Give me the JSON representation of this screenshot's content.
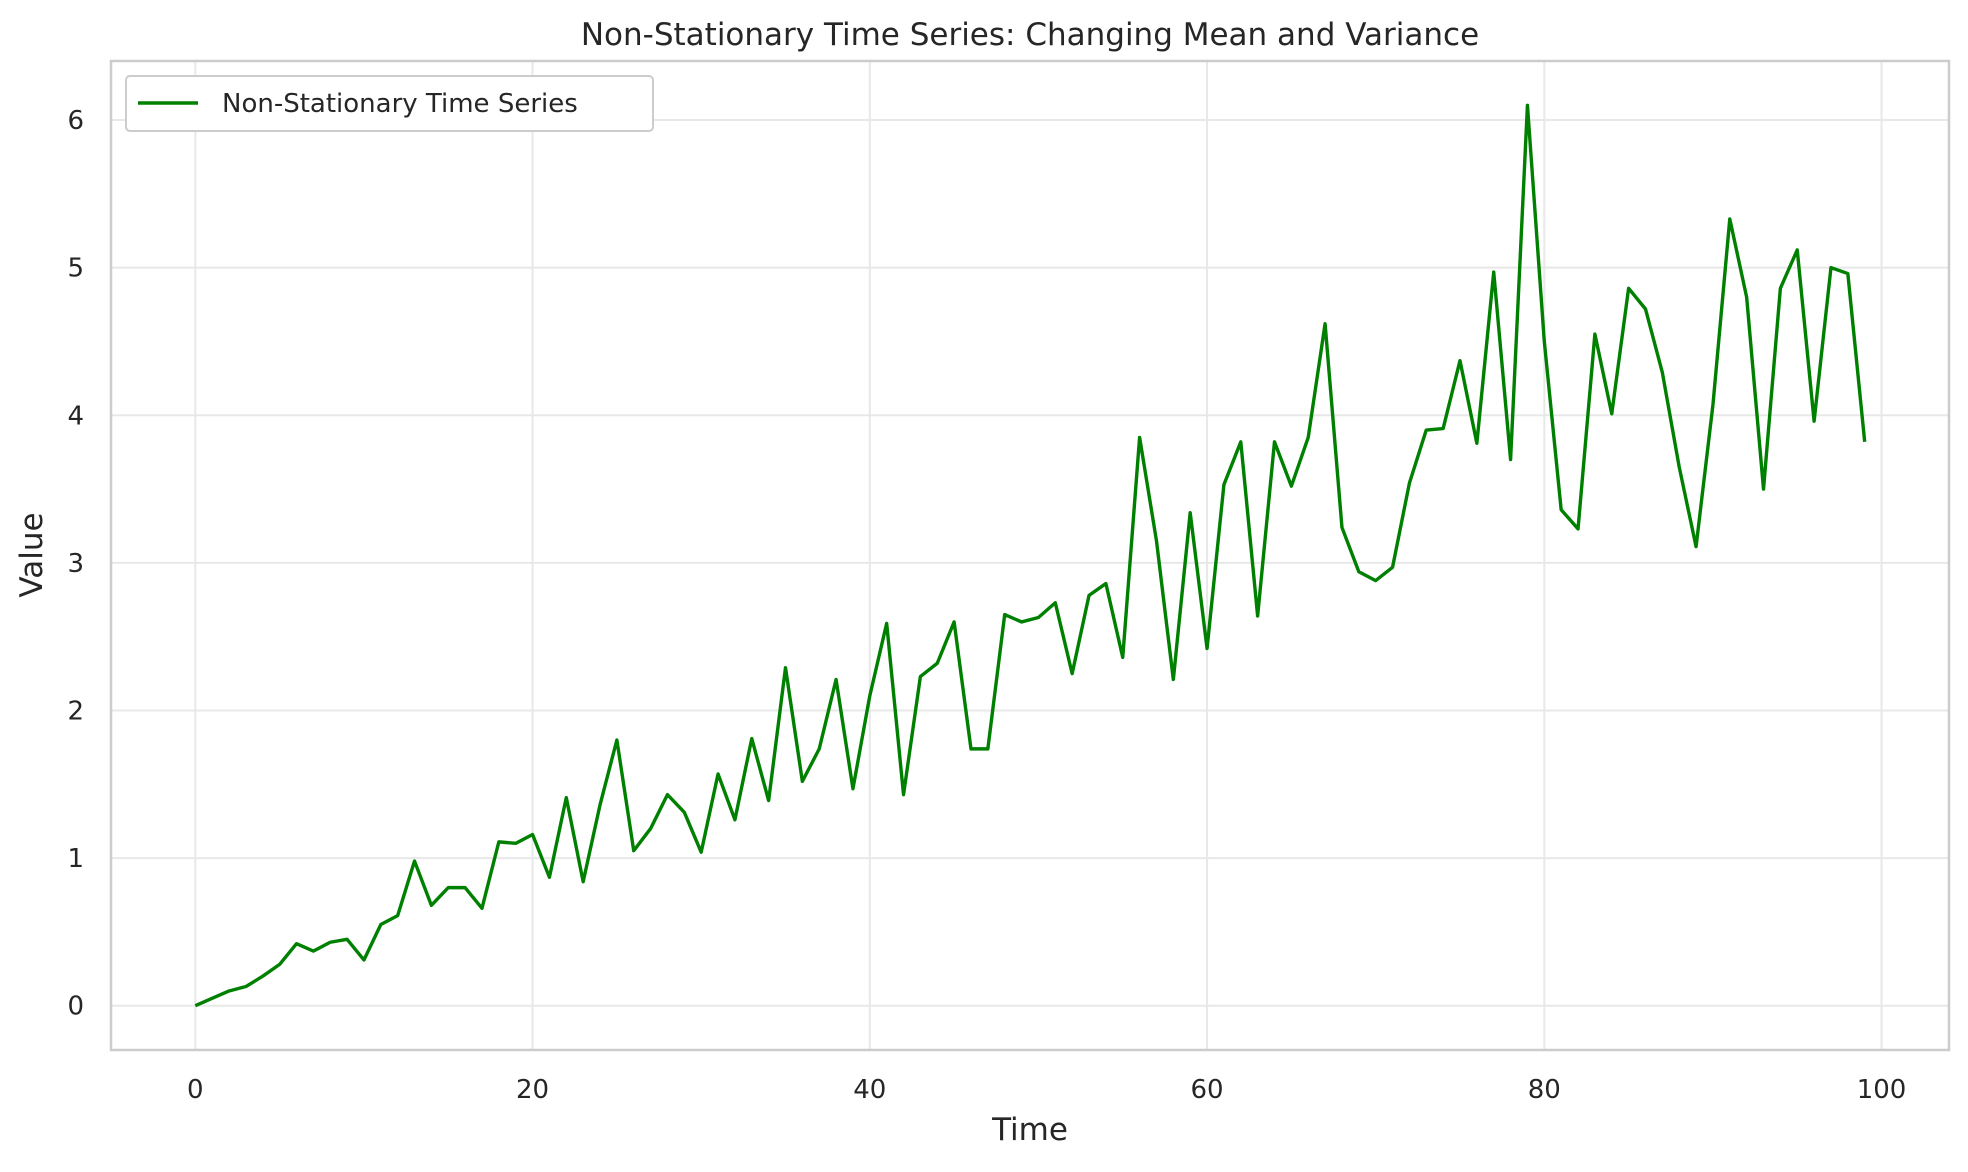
{
  "chart_data": {
    "type": "line",
    "title": "Non-Stationary Time Series: Changing Mean and Variance",
    "xlabel": "Time",
    "ylabel": "Value",
    "xlim": [
      -5,
      104
    ],
    "ylim": [
      -0.3,
      6.4
    ],
    "xticks": [
      0,
      20,
      40,
      60,
      80,
      100
    ],
    "yticks": [
      0,
      1,
      2,
      3,
      4,
      5,
      6
    ],
    "xtick_labels": [
      "0",
      "20",
      "40",
      "60",
      "80",
      "100"
    ],
    "ytick_labels": [
      "0",
      "1",
      "2",
      "3",
      "4",
      "5",
      "6"
    ],
    "grid": true,
    "legend_position": "upper-left",
    "series": [
      {
        "name": "Non-Stationary Time Series",
        "color": "#008000",
        "x": [
          0,
          1,
          2,
          3,
          4,
          5,
          6,
          7,
          8,
          9,
          10,
          11,
          12,
          13,
          14,
          15,
          16,
          17,
          18,
          19,
          20,
          21,
          22,
          23,
          24,
          25,
          26,
          27,
          28,
          29,
          30,
          31,
          32,
          33,
          34,
          35,
          36,
          37,
          38,
          39,
          40,
          41,
          42,
          43,
          44,
          45,
          46,
          47,
          48,
          49,
          50,
          51,
          52,
          53,
          54,
          55,
          56,
          57,
          58,
          59,
          60,
          61,
          62,
          63,
          64,
          65,
          66,
          67,
          68,
          69,
          70,
          71,
          72,
          73,
          74,
          75,
          76,
          77,
          78,
          79,
          80,
          81,
          82,
          83,
          84,
          85,
          86,
          87,
          88,
          89,
          90,
          91,
          92,
          93,
          94,
          95,
          96,
          97,
          98,
          99
        ],
        "values": [
          0.0,
          0.05,
          0.1,
          0.13,
          0.2,
          0.28,
          0.42,
          0.37,
          0.43,
          0.45,
          0.31,
          0.55,
          0.61,
          0.98,
          0.68,
          0.8,
          0.8,
          0.66,
          1.11,
          1.1,
          1.16,
          0.87,
          1.41,
          0.84,
          1.36,
          1.8,
          1.05,
          1.2,
          1.43,
          1.31,
          1.04,
          1.57,
          1.26,
          1.81,
          1.39,
          2.29,
          1.52,
          1.74,
          2.21,
          1.47,
          2.1,
          2.59,
          1.43,
          2.23,
          2.32,
          2.6,
          1.74,
          1.74,
          2.65,
          2.6,
          2.63,
          2.73,
          2.25,
          2.78,
          2.86,
          2.36,
          3.85,
          3.15,
          2.21,
          3.34,
          2.42,
          3.53,
          3.82,
          2.64,
          3.82,
          3.52,
          3.85,
          4.62,
          3.24,
          2.94,
          2.88,
          2.97,
          3.54,
          3.9,
          3.91,
          4.37,
          3.81,
          4.97,
          3.7,
          6.1,
          4.5,
          3.36,
          3.23,
          4.55,
          4.01,
          4.86,
          4.72,
          4.29,
          3.65,
          3.11,
          4.07,
          5.33,
          4.8,
          3.5,
          4.86,
          5.12,
          3.96,
          5.0,
          4.96,
          3.82
        ]
      }
    ]
  }
}
